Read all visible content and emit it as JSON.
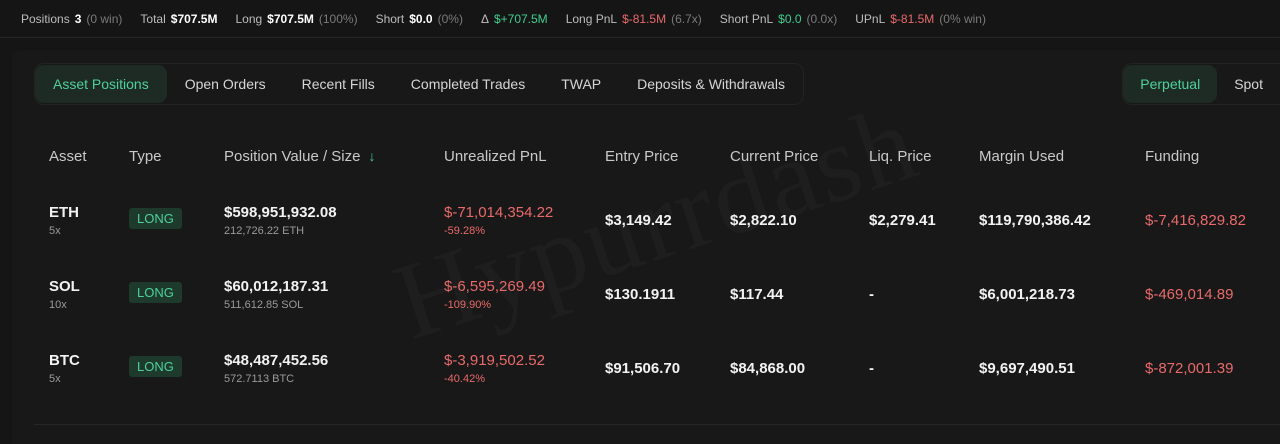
{
  "stats": [
    {
      "label": "Positions",
      "value": "3",
      "sub": "(0 win)",
      "tone": ""
    },
    {
      "label": "Total",
      "value": "$707.5M",
      "sub": "",
      "tone": ""
    },
    {
      "label": "Long",
      "value": "$707.5M",
      "sub": "(100%)",
      "tone": ""
    },
    {
      "label": "Short",
      "value": "$0.0",
      "sub": "(0%)",
      "tone": ""
    },
    {
      "label": "Δ",
      "value": "$+707.5M",
      "sub": "",
      "tone": "pos"
    },
    {
      "label": "Long PnL",
      "value": "$-81.5M",
      "sub": "(6.7x)",
      "tone": "neg"
    },
    {
      "label": "Short PnL",
      "value": "$0.0",
      "sub": "(0.0x)",
      "tone": "pos"
    },
    {
      "label": "UPnL",
      "value": "$-81.5M",
      "sub": "(0% win)",
      "tone": "neg"
    }
  ],
  "tabs": [
    "Asset Positions",
    "Open Orders",
    "Recent Fills",
    "Completed Trades",
    "TWAP",
    "Deposits & Withdrawals"
  ],
  "market_toggle": [
    "Perpetual",
    "Spot"
  ],
  "columns": {
    "asset": "Asset",
    "type": "Type",
    "position": "Position Value / Size",
    "sort_arrow": "↓",
    "upnl": "Unrealized PnL",
    "entry": "Entry Price",
    "current": "Current Price",
    "liq": "Liq. Price",
    "margin": "Margin Used",
    "funding": "Funding"
  },
  "rows": [
    {
      "asset": "ETH",
      "leverage": "5x",
      "type": "LONG",
      "value": "$598,951,932.08",
      "size": "212,726.22 ETH",
      "upnl": "$-71,014,354.22",
      "upnl_pct": "-59.28%",
      "entry": "$3,149.42",
      "current": "$2,822.10",
      "liq": "$2,279.41",
      "margin": "$119,790,386.42",
      "funding": "$-7,416,829.82"
    },
    {
      "asset": "SOL",
      "leverage": "10x",
      "type": "LONG",
      "value": "$60,012,187.31",
      "size": "511,612.85 SOL",
      "upnl": "$-6,595,269.49",
      "upnl_pct": "-109.90%",
      "entry": "$130.1911",
      "current": "$117.44",
      "liq": "-",
      "margin": "$6,001,218.73",
      "funding": "$-469,014.89"
    },
    {
      "asset": "BTC",
      "leverage": "5x",
      "type": "LONG",
      "value": "$48,487,452.56",
      "size": "572.7113 BTC",
      "upnl": "$-3,919,502.52",
      "upnl_pct": "-40.42%",
      "entry": "$91,506.70",
      "current": "$84,868.00",
      "liq": "-",
      "margin": "$9,697,490.51",
      "funding": "$-872,001.39"
    }
  ],
  "watermark": "Hypurrdash"
}
